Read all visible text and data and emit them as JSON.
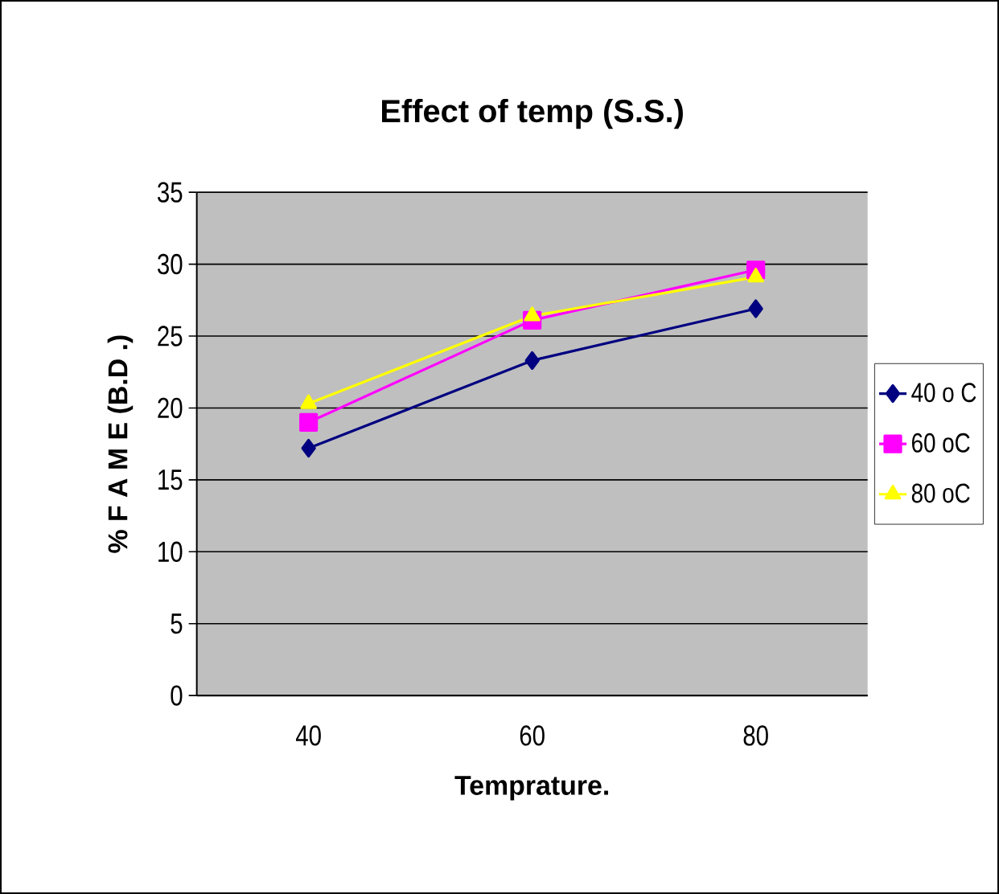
{
  "chart_data": {
    "type": "line",
    "title": "Effect of temp (S.S.)",
    "xlabel": "Temprature.",
    "ylabel": "% F A M E (B.D .)",
    "categories": [
      "40",
      "60",
      "80"
    ],
    "series": [
      {
        "name": "40 o C",
        "color": "#000080",
        "marker": "diamond",
        "values": [
          17.2,
          23.3,
          26.9
        ]
      },
      {
        "name": "60 oC",
        "color": "#ff00ff",
        "marker": "square",
        "values": [
          19.0,
          26.1,
          29.6
        ]
      },
      {
        "name": "80 oC",
        "color": "#ffff00",
        "marker": "triangle",
        "values": [
          20.3,
          26.4,
          29.1
        ]
      }
    ],
    "ylim": [
      0,
      35
    ],
    "yticks": [
      0,
      5,
      10,
      15,
      20,
      25,
      30,
      35
    ],
    "grid": "y",
    "legend": "right"
  }
}
